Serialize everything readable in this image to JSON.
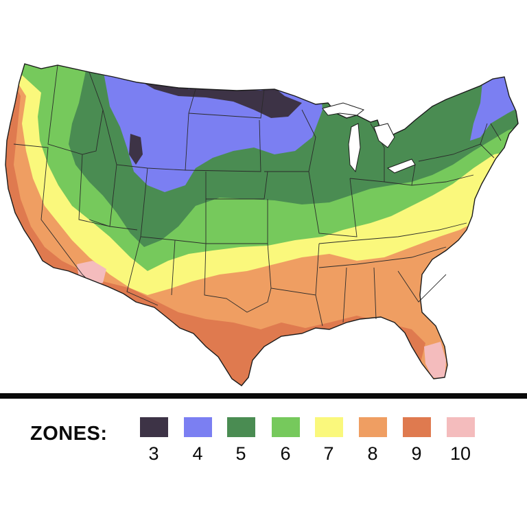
{
  "legend": {
    "title": "ZONES:",
    "zones": [
      {
        "label": "3",
        "color": "#3d3346"
      },
      {
        "label": "4",
        "color": "#7b7ff2"
      },
      {
        "label": "5",
        "color": "#4a8c52"
      },
      {
        "label": "6",
        "color": "#76c95c"
      },
      {
        "label": "7",
        "color": "#faf87c"
      },
      {
        "label": "8",
        "color": "#ef9e62"
      },
      {
        "label": "9",
        "color": "#df7a4f"
      },
      {
        "label": "10",
        "color": "#f4bcbd"
      }
    ]
  }
}
